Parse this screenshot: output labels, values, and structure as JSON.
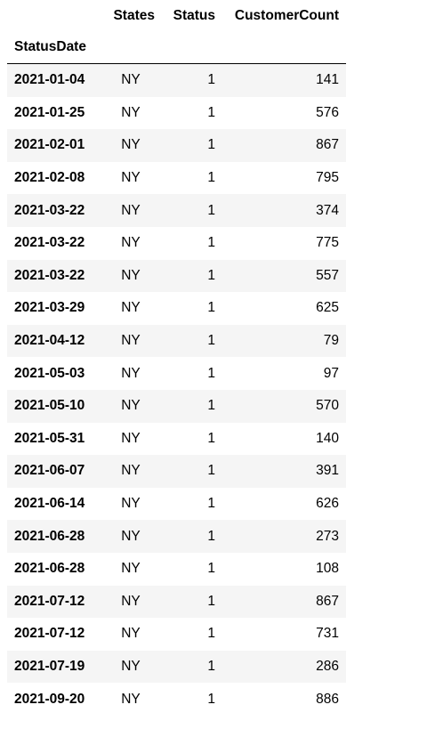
{
  "table": {
    "columns": [
      "States",
      "Status",
      "CustomerCount"
    ],
    "index_name": "StatusDate",
    "rows": [
      {
        "date": "2021-01-04",
        "states": "NY",
        "status": "1",
        "count": "141"
      },
      {
        "date": "2021-01-25",
        "states": "NY",
        "status": "1",
        "count": "576"
      },
      {
        "date": "2021-02-01",
        "states": "NY",
        "status": "1",
        "count": "867"
      },
      {
        "date": "2021-02-08",
        "states": "NY",
        "status": "1",
        "count": "795"
      },
      {
        "date": "2021-03-22",
        "states": "NY",
        "status": "1",
        "count": "374"
      },
      {
        "date": "2021-03-22",
        "states": "NY",
        "status": "1",
        "count": "775"
      },
      {
        "date": "2021-03-22",
        "states": "NY",
        "status": "1",
        "count": "557"
      },
      {
        "date": "2021-03-29",
        "states": "NY",
        "status": "1",
        "count": "625"
      },
      {
        "date": "2021-04-12",
        "states": "NY",
        "status": "1",
        "count": "79"
      },
      {
        "date": "2021-05-03",
        "states": "NY",
        "status": "1",
        "count": "97"
      },
      {
        "date": "2021-05-10",
        "states": "NY",
        "status": "1",
        "count": "570"
      },
      {
        "date": "2021-05-31",
        "states": "NY",
        "status": "1",
        "count": "140"
      },
      {
        "date": "2021-06-07",
        "states": "NY",
        "status": "1",
        "count": "391"
      },
      {
        "date": "2021-06-14",
        "states": "NY",
        "status": "1",
        "count": "626"
      },
      {
        "date": "2021-06-28",
        "states": "NY",
        "status": "1",
        "count": "273"
      },
      {
        "date": "2021-06-28",
        "states": "NY",
        "status": "1",
        "count": "108"
      },
      {
        "date": "2021-07-12",
        "states": "NY",
        "status": "1",
        "count": "867"
      },
      {
        "date": "2021-07-12",
        "states": "NY",
        "status": "1",
        "count": "731"
      },
      {
        "date": "2021-07-19",
        "states": "NY",
        "status": "1",
        "count": "286"
      },
      {
        "date": "2021-09-20",
        "states": "NY",
        "status": "1",
        "count": "886"
      }
    ]
  },
  "style": {
    "row_stripe_color": "#f5f5f5",
    "header_rule_color": "#000000"
  }
}
